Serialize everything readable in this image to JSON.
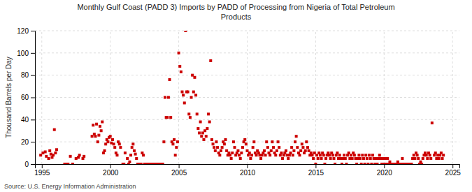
{
  "chart_data": {
    "type": "scatter",
    "title": "Monthly Gulf Coast (PADD 3) Imports by PADD of Processing from Nigeria of Total Petroleum\nProducts",
    "ylabel": "Thousand Barrels per Day",
    "source": "Source: U.S. Energy Information Administration",
    "color": "#cc0000",
    "marker": "square",
    "grid": true,
    "xlim": [
      1994.5,
      2025.5
    ],
    "xticks": [
      1995,
      2000,
      2005,
      2010,
      2015,
      2020,
      2025
    ],
    "ylim": [
      0,
      120
    ],
    "yticks": [
      0,
      20,
      40,
      60,
      80,
      100,
      120
    ],
    "x": [
      1994.917,
      1995.083,
      1995.25,
      1995.333,
      1995.5,
      1995.583,
      1995.667,
      1995.75,
      1995.833,
      1995.917,
      1996.0,
      1996.083,
      1996.667,
      1996.75,
      1996.833,
      1996.917,
      1997.083,
      1997.25,
      1997.5,
      1997.667,
      1997.75,
      1998.0,
      1998.083,
      1998.667,
      1998.75,
      1998.833,
      1998.917,
      1999.0,
      1999.083,
      1999.167,
      1999.25,
      1999.333,
      1999.417,
      1999.5,
      1999.583,
      1999.667,
      1999.75,
      1999.833,
      1999.917,
      2000.0,
      2000.083,
      2000.167,
      2000.25,
      2000.333,
      2000.417,
      2000.5,
      2000.583,
      2000.667,
      2000.75,
      2000.917,
      2001.0,
      2001.083,
      2001.25,
      2001.333,
      2001.417,
      2001.5,
      2001.583,
      2001.667,
      2001.75,
      2001.833,
      2001.917,
      2002.0,
      2002.083,
      2002.167,
      2002.25,
      2002.333,
      2002.417,
      2002.5,
      2002.583,
      2002.75,
      2002.833,
      2002.917,
      2003.0,
      2003.083,
      2003.167,
      2003.25,
      2003.333,
      2003.417,
      2003.5,
      2003.583,
      2003.667,
      2003.75,
      2003.833,
      2003.917,
      2004.0,
      2004.083,
      2004.167,
      2004.25,
      2004.333,
      2004.417,
      2004.5,
      2004.583,
      2004.667,
      2004.75,
      2004.833,
      2004.917,
      2005.0,
      2005.083,
      2005.167,
      2005.25,
      2005.333,
      2005.417,
      2005.5,
      2005.583,
      2005.667,
      2005.75,
      2005.833,
      2005.917,
      2006.0,
      2006.083,
      2006.167,
      2006.25,
      2006.333,
      2006.417,
      2006.5,
      2006.583,
      2006.667,
      2006.75,
      2006.833,
      2006.917,
      2007.0,
      2007.083,
      2007.167,
      2007.25,
      2007.333,
      2007.417,
      2007.5,
      2007.583,
      2007.667,
      2007.75,
      2007.833,
      2007.917,
      2008.0,
      2008.083,
      2008.167,
      2008.25,
      2008.333,
      2008.417,
      2008.5,
      2008.583,
      2008.667,
      2008.75,
      2008.833,
      2008.917,
      2009.0,
      2009.083,
      2009.167,
      2009.25,
      2009.333,
      2009.417,
      2009.5,
      2009.583,
      2009.667,
      2009.75,
      2009.833,
      2009.917,
      2010.0,
      2010.083,
      2010.167,
      2010.25,
      2010.333,
      2010.417,
      2010.5,
      2010.583,
      2010.667,
      2010.75,
      2010.833,
      2010.917,
      2011.0,
      2011.083,
      2011.167,
      2011.25,
      2011.333,
      2011.417,
      2011.5,
      2011.583,
      2011.667,
      2011.75,
      2011.833,
      2011.917,
      2012.0,
      2012.083,
      2012.167,
      2012.25,
      2012.333,
      2012.417,
      2012.5,
      2012.583,
      2012.667,
      2012.75,
      2012.833,
      2012.917,
      2013.0,
      2013.083,
      2013.167,
      2013.25,
      2013.333,
      2013.417,
      2013.5,
      2013.583,
      2013.667,
      2013.75,
      2013.833,
      2013.917,
      2014.0,
      2014.083,
      2014.167,
      2014.25,
      2014.333,
      2014.417,
      2014.5,
      2014.583,
      2014.667,
      2014.75,
      2014.833,
      2014.917,
      2015.0,
      2015.083,
      2015.167,
      2015.25,
      2015.333,
      2015.417,
      2015.5,
      2015.583,
      2015.667,
      2015.75,
      2015.833,
      2015.917,
      2016.0,
      2016.083,
      2016.167,
      2016.25,
      2016.333,
      2016.417,
      2016.5,
      2016.583,
      2016.667,
      2016.75,
      2016.833,
      2016.917,
      2017.0,
      2017.083,
      2017.167,
      2017.25,
      2017.333,
      2017.417,
      2017.5,
      2017.583,
      2017.667,
      2017.75,
      2017.833,
      2017.917,
      2018.0,
      2018.083,
      2018.167,
      2018.25,
      2018.333,
      2018.417,
      2018.5,
      2018.583,
      2018.667,
      2018.75,
      2018.833,
      2018.917,
      2019.0,
      2019.083,
      2019.167,
      2019.25,
      2019.333,
      2019.417,
      2019.5,
      2019.583,
      2019.667,
      2019.75,
      2019.833,
      2019.917,
      2020.0,
      2020.083,
      2020.167,
      2020.25,
      2020.333,
      2020.417,
      2020.5,
      2020.583,
      2020.667,
      2020.75,
      2020.833,
      2020.917,
      2021.0,
      2021.083,
      2021.167,
      2021.25,
      2021.333,
      2021.417,
      2021.5,
      2021.583,
      2021.667,
      2021.75,
      2021.833,
      2021.917,
      2022.0,
      2022.083,
      2022.167,
      2022.25,
      2022.333,
      2022.417,
      2022.5,
      2022.583,
      2022.667,
      2022.75,
      2022.833,
      2022.917,
      2023.0,
      2023.083,
      2023.167,
      2023.25,
      2023.333,
      2023.417,
      2023.5,
      2023.667,
      2023.75,
      2023.833,
      2023.917,
      2024.0,
      2024.083,
      2024.167,
      2024.25,
      2024.333
    ],
    "values": [
      8,
      10,
      11,
      7,
      5,
      12,
      9,
      6,
      8,
      31,
      10,
      13,
      0,
      0,
      0,
      0,
      7,
      0,
      5,
      6,
      8,
      5,
      7,
      25,
      35,
      27,
      25,
      36,
      20,
      26,
      34,
      30,
      38,
      10,
      12,
      18,
      22,
      20,
      24,
      25,
      19,
      22,
      18,
      15,
      10,
      8,
      20,
      18,
      15,
      0,
      0,
      10,
      5,
      0,
      2,
      8,
      15,
      18,
      12,
      9,
      5,
      0,
      0,
      0,
      0,
      10,
      8,
      0,
      0,
      0,
      0,
      0,
      0,
      0,
      0,
      0,
      0,
      0,
      0,
      0,
      0,
      0,
      0,
      20,
      60,
      42,
      42,
      60,
      76,
      42,
      20,
      18,
      22,
      8,
      15,
      20,
      100,
      88,
      83,
      65,
      62,
      55,
      120,
      65,
      65,
      45,
      42,
      60,
      80,
      65,
      78,
      62,
      45,
      32,
      28,
      38,
      25,
      28,
      22,
      30,
      25,
      32,
      45,
      38,
      93,
      22,
      18,
      15,
      12,
      20,
      15,
      10,
      8,
      12,
      15,
      20,
      18,
      22,
      12,
      8,
      10,
      8,
      5,
      10,
      20,
      15,
      8,
      10,
      12,
      8,
      5,
      10,
      15,
      20,
      22,
      18,
      12,
      8,
      10,
      5,
      8,
      15,
      20,
      10,
      8,
      12,
      10,
      8,
      5,
      8,
      10,
      12,
      8,
      20,
      15,
      10,
      8,
      12,
      20,
      15,
      10,
      8,
      12,
      20,
      15,
      8,
      10,
      5,
      8,
      10,
      12,
      8,
      5,
      8,
      10,
      15,
      8,
      12,
      20,
      25,
      15,
      10,
      8,
      12,
      18,
      15,
      10,
      12,
      20,
      15,
      12,
      8,
      10,
      8,
      5,
      10,
      0,
      8,
      5,
      10,
      8,
      5,
      10,
      8,
      0,
      5,
      8,
      10,
      8,
      5,
      10,
      8,
      5,
      0,
      8,
      10,
      5,
      8,
      5,
      0,
      5,
      8,
      5,
      0,
      8,
      10,
      5,
      8,
      5,
      10,
      8,
      5,
      0,
      5,
      8,
      5,
      0,
      8,
      5,
      0,
      8,
      5,
      0,
      8,
      5,
      0,
      8,
      5,
      0,
      5,
      0,
      5,
      8,
      5,
      0,
      5,
      0,
      5,
      0,
      5,
      0,
      2,
      0,
      0,
      0,
      0,
      0,
      0,
      2,
      0,
      0,
      0,
      5,
      0,
      0,
      0,
      0,
      0,
      0,
      0,
      0,
      5,
      8,
      5,
      10,
      8,
      5,
      0,
      2,
      0,
      5,
      8,
      10,
      8,
      5,
      10,
      8,
      5,
      37,
      8,
      10,
      5,
      8,
      5,
      8,
      10,
      5,
      8
    ]
  }
}
